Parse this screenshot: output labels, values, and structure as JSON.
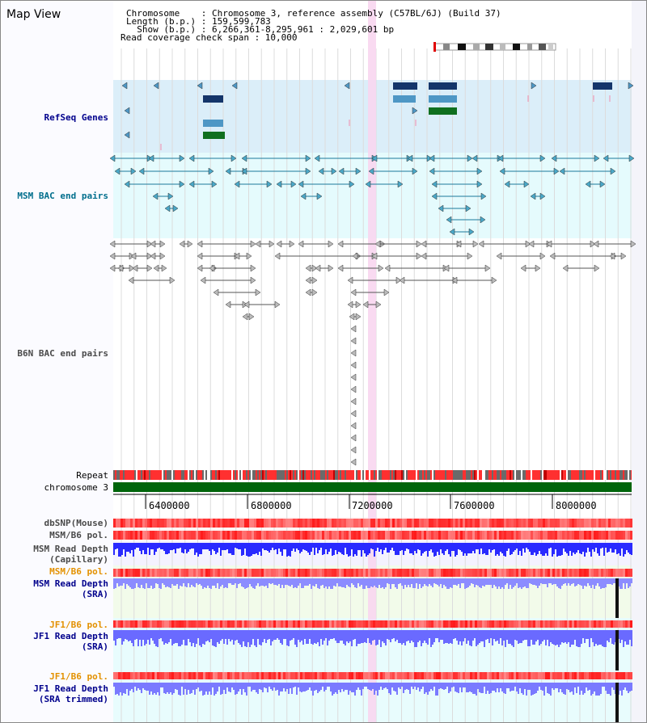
{
  "title": "Map View",
  "info": {
    "chromosome": "Chromosome    : Chromosome 3, reference assembly (C57BL/6J) (Build 37)",
    "length": "Length (b.p.) : 159,599,783",
    "show": "  Show (b.p.) : 6,266,361-8,295,961 : 2,029,601 bp",
    "coverage": "Read coverage check span : 10,000"
  },
  "tracks": {
    "refseq": "RefSeq Genes",
    "msm_bac": "MSM BAC end pairs",
    "b6n_bac": "B6N BAC end pairs",
    "repeat": "Repeat",
    "chromosome": "chromosome 3",
    "dbsnp": "dbSNP(Mouse)",
    "msm_pol": "MSM/B6 pol.",
    "msm_depth_cap_1": "MSM Read Depth",
    "msm_depth_cap_2": "(Capillary)",
    "msm_pol_sra": "MSM/B6 pol.",
    "msm_depth_sra_1": "MSM Read Depth",
    "msm_depth_sra_2": "(SRA)",
    "jf1_pol_1": "JF1/B6 pol.",
    "jf1_depth_1": "JF1 Read Depth",
    "jf1_depth_2": "(SRA)",
    "jf1_pol_2": "JF1/B6 pol.",
    "jf1_depth_t1": "JF1 Read Depth",
    "jf1_depth_t2": "(SRA trimmed)"
  },
  "axis_ticks": [
    "6400000",
    "6800000",
    "7200000",
    "7600000",
    "8000000"
  ],
  "colors": {
    "refseq_bg": "#dbeef9",
    "msm_bg": "#e5fbfd",
    "highlight": "#f8d6f0",
    "gene_dark": "#14356a",
    "gene_mid": "#4e97c5",
    "gene_green": "#0f6f1f",
    "chrom_green": "#00650b",
    "label_navy": "#00008c",
    "label_teal": "#006e8c",
    "label_orange": "#e39100",
    "label_gray": "#4a4a4a"
  }
}
